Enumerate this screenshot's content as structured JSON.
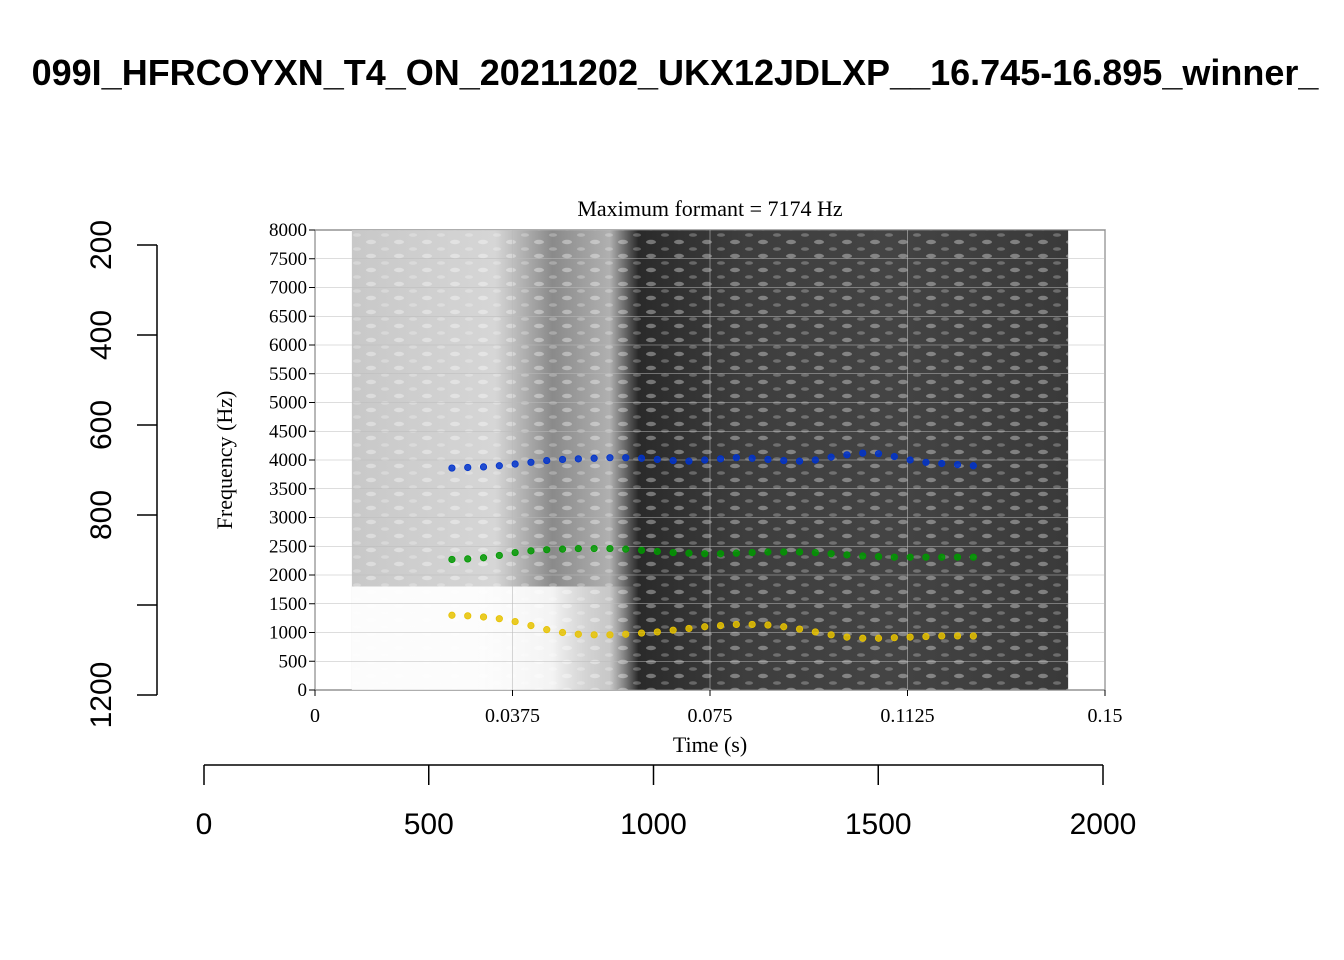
{
  "title": "099I_HFRCOYXN_T4_ON_20211202_UKX12JDLXP__16.745-16.895_winner_",
  "outer_axes": {
    "x_ticks": [
      0,
      500,
      1000,
      1500,
      2000
    ],
    "y_ticks": [
      "200",
      "400",
      "600",
      "800",
      "",
      "1200"
    ],
    "y_values": [
      200,
      400,
      600,
      800,
      1000,
      1200
    ]
  },
  "chart_data": {
    "type": "scatter",
    "title": "Maximum formant  =  7174 Hz",
    "xlabel": "Time (s)",
    "ylabel": "Frequency (Hz)",
    "xlim": [
      0,
      0.15
    ],
    "ylim": [
      0,
      8000
    ],
    "x_ticks": [
      "0",
      "0.0375",
      "0.075",
      "0.1125",
      "0.15"
    ],
    "x_tick_values": [
      0,
      0.0375,
      0.075,
      0.1125,
      0.15
    ],
    "y_ticks": [
      "0",
      "500",
      "1000",
      "1500",
      "2000",
      "2500",
      "3000",
      "3500",
      "4000",
      "4500",
      "5000",
      "5500",
      "6000",
      "6500",
      "7000",
      "7500",
      "8000"
    ],
    "y_tick_values": [
      0,
      500,
      1000,
      1500,
      2000,
      2500,
      3000,
      3500,
      4000,
      4500,
      5000,
      5500,
      6000,
      6500,
      7000,
      7500,
      8000
    ],
    "background": "spectrogram",
    "spectrogram_span": [
      0.007,
      0.143
    ],
    "grid": true,
    "series": [
      {
        "color": "#0033cc",
        "x": [
          0.026,
          0.029,
          0.032,
          0.035,
          0.038,
          0.041,
          0.044,
          0.047,
          0.05,
          0.053,
          0.056,
          0.059,
          0.062,
          0.065,
          0.068,
          0.071,
          0.074,
          0.077,
          0.08,
          0.083,
          0.086,
          0.089,
          0.092,
          0.095,
          0.098,
          0.101,
          0.104,
          0.107,
          0.11,
          0.113,
          0.116,
          0.119,
          0.122,
          0.125
        ],
        "y": [
          3860,
          3870,
          3880,
          3900,
          3930,
          3960,
          3990,
          4010,
          4020,
          4030,
          4040,
          4040,
          4030,
          4010,
          3990,
          3980,
          4000,
          4020,
          4040,
          4030,
          4010,
          3990,
          3980,
          4000,
          4050,
          4090,
          4120,
          4110,
          4060,
          4000,
          3960,
          3940,
          3920,
          3900
        ]
      },
      {
        "color": "#009900",
        "x": [
          0.026,
          0.029,
          0.032,
          0.035,
          0.038,
          0.041,
          0.044,
          0.047,
          0.05,
          0.053,
          0.056,
          0.059,
          0.062,
          0.065,
          0.068,
          0.071,
          0.074,
          0.077,
          0.08,
          0.083,
          0.086,
          0.089,
          0.092,
          0.095,
          0.098,
          0.101,
          0.104,
          0.107,
          0.11,
          0.113,
          0.116,
          0.119,
          0.122,
          0.125
        ],
        "y": [
          2270,
          2280,
          2300,
          2340,
          2390,
          2420,
          2440,
          2450,
          2460,
          2460,
          2460,
          2450,
          2430,
          2410,
          2390,
          2380,
          2370,
          2370,
          2380,
          2390,
          2400,
          2400,
          2400,
          2390,
          2370,
          2350,
          2330,
          2320,
          2310,
          2310,
          2310,
          2310,
          2310,
          2310
        ]
      },
      {
        "color": "#e6c200",
        "x": [
          0.026,
          0.029,
          0.032,
          0.035,
          0.038,
          0.041,
          0.044,
          0.047,
          0.05,
          0.053,
          0.056,
          0.059,
          0.062,
          0.065,
          0.068,
          0.071,
          0.074,
          0.077,
          0.08,
          0.083,
          0.086,
          0.089,
          0.092,
          0.095,
          0.098,
          0.101,
          0.104,
          0.107,
          0.11,
          0.113,
          0.116,
          0.119,
          0.122,
          0.125
        ],
        "y": [
          1300,
          1290,
          1270,
          1240,
          1190,
          1120,
          1050,
          1000,
          970,
          960,
          960,
          970,
          990,
          1010,
          1040,
          1070,
          1100,
          1120,
          1140,
          1140,
          1130,
          1100,
          1060,
          1010,
          960,
          920,
          900,
          900,
          910,
          920,
          930,
          940,
          940,
          940
        ]
      }
    ]
  }
}
